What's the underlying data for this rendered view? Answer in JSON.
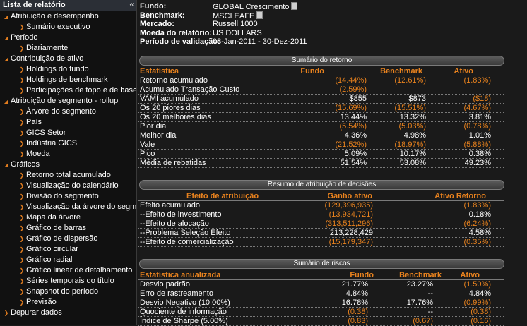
{
  "sidebar": {
    "title": "Lista de relatório",
    "collapse_glyph": "«",
    "items": [
      {
        "label": "Atribuição e desempenho",
        "level": 0,
        "icon": "triangle-down-icon"
      },
      {
        "label": "Sumário executivo",
        "level": 1,
        "icon": "chevron-right-icon"
      },
      {
        "label": "Período",
        "level": 0,
        "icon": "triangle-down-icon"
      },
      {
        "label": "Diariamente",
        "level": 1,
        "icon": "chevron-right-icon"
      },
      {
        "label": "Contribuição de ativo",
        "level": 0,
        "icon": "triangle-down-icon"
      },
      {
        "label": "Holdings do fundo",
        "level": 1,
        "icon": "chevron-right-icon"
      },
      {
        "label": "Holdings de benchmark",
        "level": 1,
        "icon": "chevron-right-icon"
      },
      {
        "label": "Participações de topo e de base",
        "level": 1,
        "icon": "chevron-right-icon"
      },
      {
        "label": "Atribuição de segmento - rollup",
        "level": 0,
        "icon": "triangle-down-icon"
      },
      {
        "label": "Árvore do segmento",
        "level": 1,
        "icon": "chevron-right-icon"
      },
      {
        "label": "País",
        "level": 1,
        "icon": "chevron-right-icon"
      },
      {
        "label": "GICS Setor",
        "level": 1,
        "icon": "chevron-right-icon"
      },
      {
        "label": "Indústria GICS",
        "level": 1,
        "icon": "chevron-right-icon"
      },
      {
        "label": "Moeda",
        "level": 1,
        "icon": "chevron-right-icon"
      },
      {
        "label": "Gráficos",
        "level": 0,
        "icon": "triangle-down-icon"
      },
      {
        "label": "Retorno total acumulado",
        "level": 1,
        "icon": "chevron-right-icon"
      },
      {
        "label": "Visualização do calendário",
        "level": 1,
        "icon": "chevron-right-icon"
      },
      {
        "label": "Divisão do segmento",
        "level": 1,
        "icon": "chevron-right-icon"
      },
      {
        "label": "Visualização da árvore do segmento",
        "level": 1,
        "icon": "chevron-right-icon"
      },
      {
        "label": "Mapa da árvore",
        "level": 1,
        "icon": "chevron-right-icon"
      },
      {
        "label": "Gráfico de barras",
        "level": 1,
        "icon": "chevron-right-icon"
      },
      {
        "label": "Gráfico de dispersão",
        "level": 1,
        "icon": "chevron-right-icon"
      },
      {
        "label": "Gráfico circular",
        "level": 1,
        "icon": "chevron-right-icon"
      },
      {
        "label": "Gráfico radial",
        "level": 1,
        "icon": "chevron-right-icon"
      },
      {
        "label": "Gráfico linear de detalhamento",
        "level": 1,
        "icon": "chevron-right-icon"
      },
      {
        "label": "Séries temporais do título",
        "level": 1,
        "icon": "chevron-right-icon"
      },
      {
        "label": "Snapshot do período",
        "level": 1,
        "icon": "chevron-right-icon"
      },
      {
        "label": "Previsão",
        "level": 1,
        "icon": "chevron-right-icon"
      },
      {
        "label": "Depurar dados",
        "level": 0,
        "icon": "chevron-right-icon"
      }
    ]
  },
  "info": [
    {
      "label": "Fundo:",
      "value": "GLOBAL Crescimento",
      "icon": "document-icon"
    },
    {
      "label": "Benchmark:",
      "value": "MSCI EAFE",
      "icon": "document-icon"
    },
    {
      "label": "Mercado:",
      "value": "Russell 1000"
    },
    {
      "label": "Moeda do relatório:",
      "value": "US DOLLARS"
    },
    {
      "label": "Período de validação:",
      "value": "03-Jan-2011 - 30-Dez-2011"
    }
  ],
  "returns": {
    "title": "Sumário do retorno",
    "headers": [
      "Estatística",
      "Fundo",
      "Benchmark",
      "Ativo"
    ],
    "rows": [
      {
        "label": "Retorno acumulado",
        "fund": "(14.44%)",
        "bench": "(12.61%)",
        "active": "(1.83%)"
      },
      {
        "label": "Acumulado Transação Custo",
        "fund": "(2.59%)",
        "bench": "",
        "active": ""
      },
      {
        "label": "VAMI acumulado",
        "fund": "$855",
        "bench": "$873",
        "active": "($18)"
      },
      {
        "label": "Os 20 piores dias",
        "fund": "(15.69%)",
        "bench": "(15.51%)",
        "active": "(4.67%)"
      },
      {
        "label": "Os 20 melhores dias",
        "fund": "13.44%",
        "bench": "13.32%",
        "active": "3.81%"
      },
      {
        "label": "Pior dia",
        "fund": "(5.54%)",
        "bench": "(5.03%)",
        "active": "(0.78%)"
      },
      {
        "label": "Melhor dia",
        "fund": "4.36%",
        "bench": "4.98%",
        "active": "1.01%"
      },
      {
        "label": "Vale",
        "fund": "(21.52%)",
        "bench": "(18.97%)",
        "active": "(5.88%)"
      },
      {
        "label": "Pico",
        "fund": "5.09%",
        "bench": "10.17%",
        "active": "0.38%"
      },
      {
        "label": "Média de rebatidas",
        "fund": "51.54%",
        "bench": "53.08%",
        "active": "49.23%"
      }
    ]
  },
  "decisions": {
    "title": "Resumo de atribuição de decisões",
    "headers": [
      "Efeito de atribuição",
      "Ganho ativo",
      "Ativo Retorno"
    ],
    "rows": [
      {
        "label": "Efeito acumulado",
        "gain": "(129,396,935)",
        "ret": "(1.83%)"
      },
      {
        "label": "--Efeito de investimento",
        "gain": "(13,934,721)",
        "ret": "0.18%"
      },
      {
        "label": "--Efeito de alocação",
        "gain": "(313,511,296)",
        "ret": "(6.24%)"
      },
      {
        "label": "--Problema Seleção Efeito",
        "gain": "213,228,429",
        "ret": "4.58%"
      },
      {
        "label": "--Efeito de comercialização",
        "gain": "(15,179,347)",
        "ret": "(0.35%)"
      }
    ]
  },
  "risks": {
    "title": "Sumário de riscos",
    "headers": [
      "Estatística anualizada",
      "Fundo",
      "Benchmark",
      "Ativo"
    ],
    "rows": [
      {
        "label": "Desvio padrão",
        "fund": "21.77%",
        "bench": "23.27%",
        "active": "(1.50%)"
      },
      {
        "label": "Erro de rastreamento",
        "fund": "4.84%",
        "bench": "--",
        "active": "4.84%"
      },
      {
        "label": "Desvio Negativo (10.00%)",
        "fund": "16.78%",
        "bench": "17.76%",
        "active": "(0.99%)"
      },
      {
        "label": "Quociente de informação",
        "fund": "(0.38)",
        "bench": "--",
        "active": "(0.38)"
      },
      {
        "label": "Índice de Sharpe (5.00%)",
        "fund": "(0.83)",
        "bench": "(0.67)",
        "active": "(0.16)"
      }
    ]
  },
  "colors": {
    "accent": "#e8821e",
    "background": "#1a1a1a",
    "sidebar": "#111111"
  }
}
